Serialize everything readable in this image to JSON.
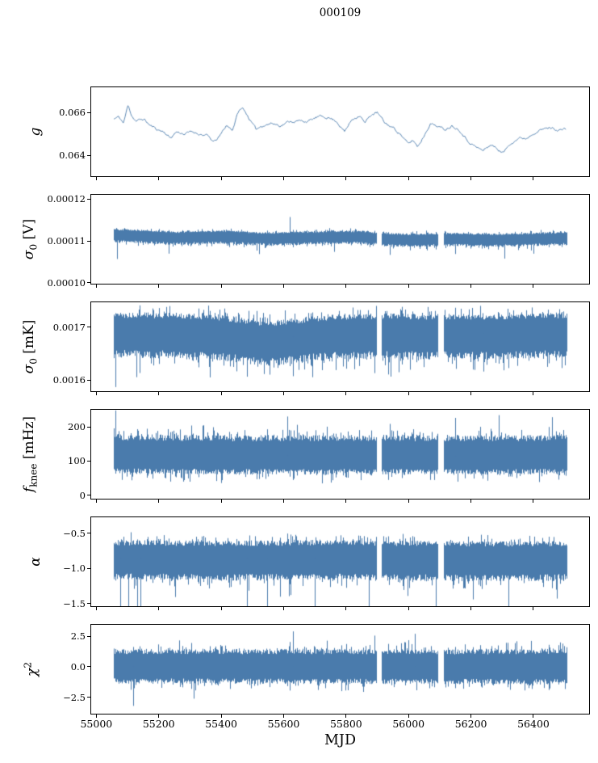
{
  "title": "000109",
  "chart_data": {
    "type": "line",
    "title": "000109",
    "xlabel": "MJD",
    "grid": false,
    "legend": null,
    "line_color": "#4a7bac",
    "xlim": [
      54981,
      56581
    ],
    "x_ticks": [
      55000,
      55200,
      55400,
      55600,
      55800,
      56000,
      56200,
      56400
    ],
    "x_tick_labels": [
      "55000",
      "55200",
      "55400",
      "55600",
      "55800",
      "56000",
      "56200",
      "56400"
    ],
    "x_data_start": 55054,
    "x_data_end": 56508,
    "data_gaps_mjd": [
      [
        55898,
        55914
      ],
      [
        56096,
        56112
      ]
    ],
    "panels": [
      {
        "ylabel": "g",
        "ylabel_sym": "g",
        "ylabel_sub": "",
        "ylabel_sup": "",
        "ylabel_unit": "",
        "style": "line",
        "ylim": [
          0.063,
          0.0672
        ],
        "y_ticks": [
          0.066,
          0.064
        ],
        "y_tick_labels": [
          "0.066",
          "0.064"
        ],
        "seed": 11,
        "noise": 5e-05,
        "summary": {
          "mean": 0.0653,
          "min": 0.064,
          "max": 0.0664
        },
        "trend": [
          [
            55054,
            0.0657
          ],
          [
            55070,
            0.0658
          ],
          [
            55085,
            0.0655
          ],
          [
            55100,
            0.0664
          ],
          [
            55110,
            0.0659
          ],
          [
            55125,
            0.0656
          ],
          [
            55150,
            0.0657
          ],
          [
            55170,
            0.0654
          ],
          [
            55195,
            0.0652
          ],
          [
            55215,
            0.0651
          ],
          [
            55235,
            0.0648
          ],
          [
            55255,
            0.0651
          ],
          [
            55280,
            0.065
          ],
          [
            55305,
            0.0651
          ],
          [
            55330,
            0.065
          ],
          [
            55355,
            0.0649
          ],
          [
            55375,
            0.0646
          ],
          [
            55395,
            0.0649
          ],
          [
            55415,
            0.0654
          ],
          [
            55435,
            0.0652
          ],
          [
            55455,
            0.0661
          ],
          [
            55470,
            0.0662
          ],
          [
            55490,
            0.0657
          ],
          [
            55510,
            0.0652
          ],
          [
            55530,
            0.0654
          ],
          [
            55560,
            0.0655
          ],
          [
            55590,
            0.0654
          ],
          [
            55620,
            0.0656
          ],
          [
            55650,
            0.0656
          ],
          [
            55680,
            0.0656
          ],
          [
            55710,
            0.0658
          ],
          [
            55740,
            0.0658
          ],
          [
            55770,
            0.0656
          ],
          [
            55795,
            0.0651
          ],
          [
            55820,
            0.0657
          ],
          [
            55845,
            0.0659
          ],
          [
            55860,
            0.0655
          ],
          [
            55880,
            0.0659
          ],
          [
            55900,
            0.066
          ],
          [
            55925,
            0.0655
          ],
          [
            55950,
            0.0653
          ],
          [
            55975,
            0.065
          ],
          [
            56000,
            0.0645
          ],
          [
            56015,
            0.0647
          ],
          [
            56030,
            0.0644
          ],
          [
            56050,
            0.0649
          ],
          [
            56070,
            0.0655
          ],
          [
            56090,
            0.0654
          ],
          [
            56115,
            0.0652
          ],
          [
            56140,
            0.0654
          ],
          [
            56165,
            0.0652
          ],
          [
            56190,
            0.0647
          ],
          [
            56215,
            0.0644
          ],
          [
            56240,
            0.0642
          ],
          [
            56265,
            0.0645
          ],
          [
            56285,
            0.0643
          ],
          [
            56305,
            0.0641
          ],
          [
            56330,
            0.0646
          ],
          [
            56355,
            0.0648
          ],
          [
            56380,
            0.0648
          ],
          [
            56405,
            0.0651
          ],
          [
            56430,
            0.0652
          ],
          [
            56455,
            0.0653
          ],
          [
            56480,
            0.0652
          ],
          [
            56508,
            0.0652
          ]
        ]
      },
      {
        "ylabel": "σ0 [V]",
        "ylabel_sym": "σ",
        "ylabel_sub": "0",
        "ylabel_sup": "",
        "ylabel_unit": " [V]",
        "style": "band",
        "ylim": [
          9.96e-05,
          0.0001212
        ],
        "y_ticks": [
          0.00012,
          0.00011,
          0.0001
        ],
        "y_tick_labels": [
          "0.00012",
          "0.00011",
          "0.00010"
        ],
        "seed": 22,
        "up": 1.3e-06,
        "dn": 2e-06,
        "p_spike": 0.025,
        "spike": 2.2e-06,
        "spike_dir": "down",
        "summary": {
          "mean": 0.000111,
          "typ_min": 0.000108,
          "typ_max": 0.000113
        },
        "trend": [
          [
            55054,
            0.0001117
          ],
          [
            55150,
            0.0001114
          ],
          [
            55250,
            0.000111
          ],
          [
            55350,
            0.0001112
          ],
          [
            55420,
            0.0001113
          ],
          [
            55500,
            0.0001109
          ],
          [
            55560,
            0.0001108
          ],
          [
            55650,
            0.000111
          ],
          [
            55750,
            0.0001112
          ],
          [
            55850,
            0.0001112
          ],
          [
            55920,
            0.0001107
          ],
          [
            56000,
            0.0001105
          ],
          [
            56080,
            0.0001106
          ],
          [
            56160,
            0.0001107
          ],
          [
            56250,
            0.0001105
          ],
          [
            56350,
            0.0001106
          ],
          [
            56430,
            0.0001108
          ],
          [
            56508,
            0.0001109
          ]
        ],
        "features": [
          [
            55063,
            0.0001056
          ],
          [
            55230,
            0.0001069
          ],
          [
            55520,
            0.0001068
          ],
          [
            55620,
            0.0001158
          ],
          [
            55940,
            0.0001066
          ],
          [
            56310,
            0.0001057
          ]
        ]
      },
      {
        "ylabel": "σ0 [mK]",
        "ylabel_sym": "σ",
        "ylabel_sub": "0",
        "ylabel_sup": "",
        "ylabel_unit": " [mK]",
        "style": "band",
        "ylim": [
          0.001577,
          0.001749
        ],
        "y_ticks": [
          0.0017,
          0.0016
        ],
        "y_tick_labels": [
          "0.0017",
          "0.0016"
        ],
        "seed": 33,
        "up": 3.6e-05,
        "dn": 5.2e-05,
        "p_spike": 0.03,
        "spike": 4.5e-05,
        "spike_dir": "down",
        "summary": {
          "mean": 0.00169,
          "typ_min": 0.00163,
          "typ_max": 0.00173
        },
        "trend": [
          [
            55054,
            0.001694
          ],
          [
            55150,
            0.001692
          ],
          [
            55250,
            0.001693
          ],
          [
            55350,
            0.00169
          ],
          [
            55430,
            0.001686
          ],
          [
            55500,
            0.001679
          ],
          [
            55560,
            0.001678
          ],
          [
            55650,
            0.001683
          ],
          [
            55720,
            0.001688
          ],
          [
            55800,
            0.00169
          ],
          [
            55870,
            0.001691
          ],
          [
            55950,
            0.001692
          ],
          [
            56050,
            0.00169
          ],
          [
            56150,
            0.001691
          ],
          [
            56250,
            0.001689
          ],
          [
            56350,
            0.001692
          ],
          [
            56450,
            0.001693
          ],
          [
            56508,
            0.001692
          ]
        ],
        "features": [
          [
            55058,
            0.001585
          ],
          [
            55630,
            0.001606
          ],
          [
            55890,
            0.001612
          ],
          [
            56240,
            0.001615
          ]
        ]
      },
      {
        "ylabel": "fknee [mHz]",
        "ylabel_sym": "f",
        "ylabel_sub": "knee",
        "ylabel_sup": "",
        "ylabel_unit": " [mHz]",
        "style": "band",
        "ylim": [
          -12,
          252
        ],
        "y_ticks": [
          200,
          100,
          0
        ],
        "y_tick_labels": [
          "200",
          "100",
          "0"
        ],
        "seed": 44,
        "up": 62,
        "dn": 56,
        "p_spike": 0.015,
        "spike": 45,
        "spike_dir": "up",
        "summary": {
          "mean": 115,
          "typ_min": 60,
          "typ_max": 180,
          "spikes_to": 240
        },
        "trend": [
          [
            55054,
            118
          ],
          [
            55400,
            115
          ],
          [
            55800,
            116
          ],
          [
            56200,
            115
          ],
          [
            56508,
            116
          ]
        ],
        "features": [
          [
            55058,
            250
          ],
          [
            55610,
            232
          ],
          [
            56150,
            228
          ],
          [
            56290,
            236
          ],
          [
            56462,
            230
          ]
        ]
      },
      {
        "ylabel": "α",
        "ylabel_sym": "α",
        "ylabel_sub": "",
        "ylabel_sup": "",
        "ylabel_unit": "",
        "style": "band",
        "ylim": [
          -1.55,
          -0.26
        ],
        "y_ticks": [
          -0.5,
          -1.0,
          -1.5
        ],
        "y_tick_labels": [
          "−0.5",
          "−1.0",
          "−1.5"
        ],
        "seed": 55,
        "up": 0.26,
        "dn": 0.32,
        "p_spike": 0.02,
        "spike": 0.33,
        "spike_dir": "down",
        "summary": {
          "mean": -0.86,
          "typ_min": -1.18,
          "typ_max": -0.6,
          "spikes_to": -1.55
        },
        "trend": [
          [
            55054,
            -0.85
          ],
          [
            55400,
            -0.86
          ],
          [
            55800,
            -0.85
          ],
          [
            56200,
            -0.87
          ],
          [
            56508,
            -0.86
          ]
        ],
        "features": [
          [
            55075,
            -1.62
          ],
          [
            55100,
            -1.78
          ],
          [
            55128,
            -1.66
          ],
          [
            55140,
            -1.6
          ],
          [
            55482,
            -1.63
          ],
          [
            55546,
            -1.76
          ],
          [
            55700,
            -1.63
          ],
          [
            55872,
            -1.58
          ],
          [
            56088,
            -1.63
          ],
          [
            56322,
            -1.58
          ]
        ]
      },
      {
        "ylabel": "χ2",
        "ylabel_sym": "χ",
        "ylabel_sub": "",
        "ylabel_sup": "2",
        "ylabel_unit": "",
        "style": "band",
        "ylim": [
          -3.9,
          3.5
        ],
        "y_ticks": [
          2.5,
          0.0,
          -2.5
        ],
        "y_tick_labels": [
          "2.5",
          "0.0",
          "−2.5"
        ],
        "seed": 66,
        "up": 1.45,
        "dn": 1.45,
        "p_spike": 0.015,
        "spike": 1.1,
        "spike_dir": "both",
        "summary": {
          "mean": 0.0,
          "typ_min": -1.5,
          "typ_max": 1.6,
          "spikes_to": 3.0
        },
        "trend": [
          [
            55054,
            0.05
          ],
          [
            56508,
            0.0
          ]
        ],
        "features": [
          [
            55115,
            -3.25
          ],
          [
            55310,
            -2.65
          ],
          [
            55630,
            2.95
          ],
          [
            55890,
            2.6
          ],
          [
            56020,
            2.75
          ]
        ]
      }
    ]
  }
}
